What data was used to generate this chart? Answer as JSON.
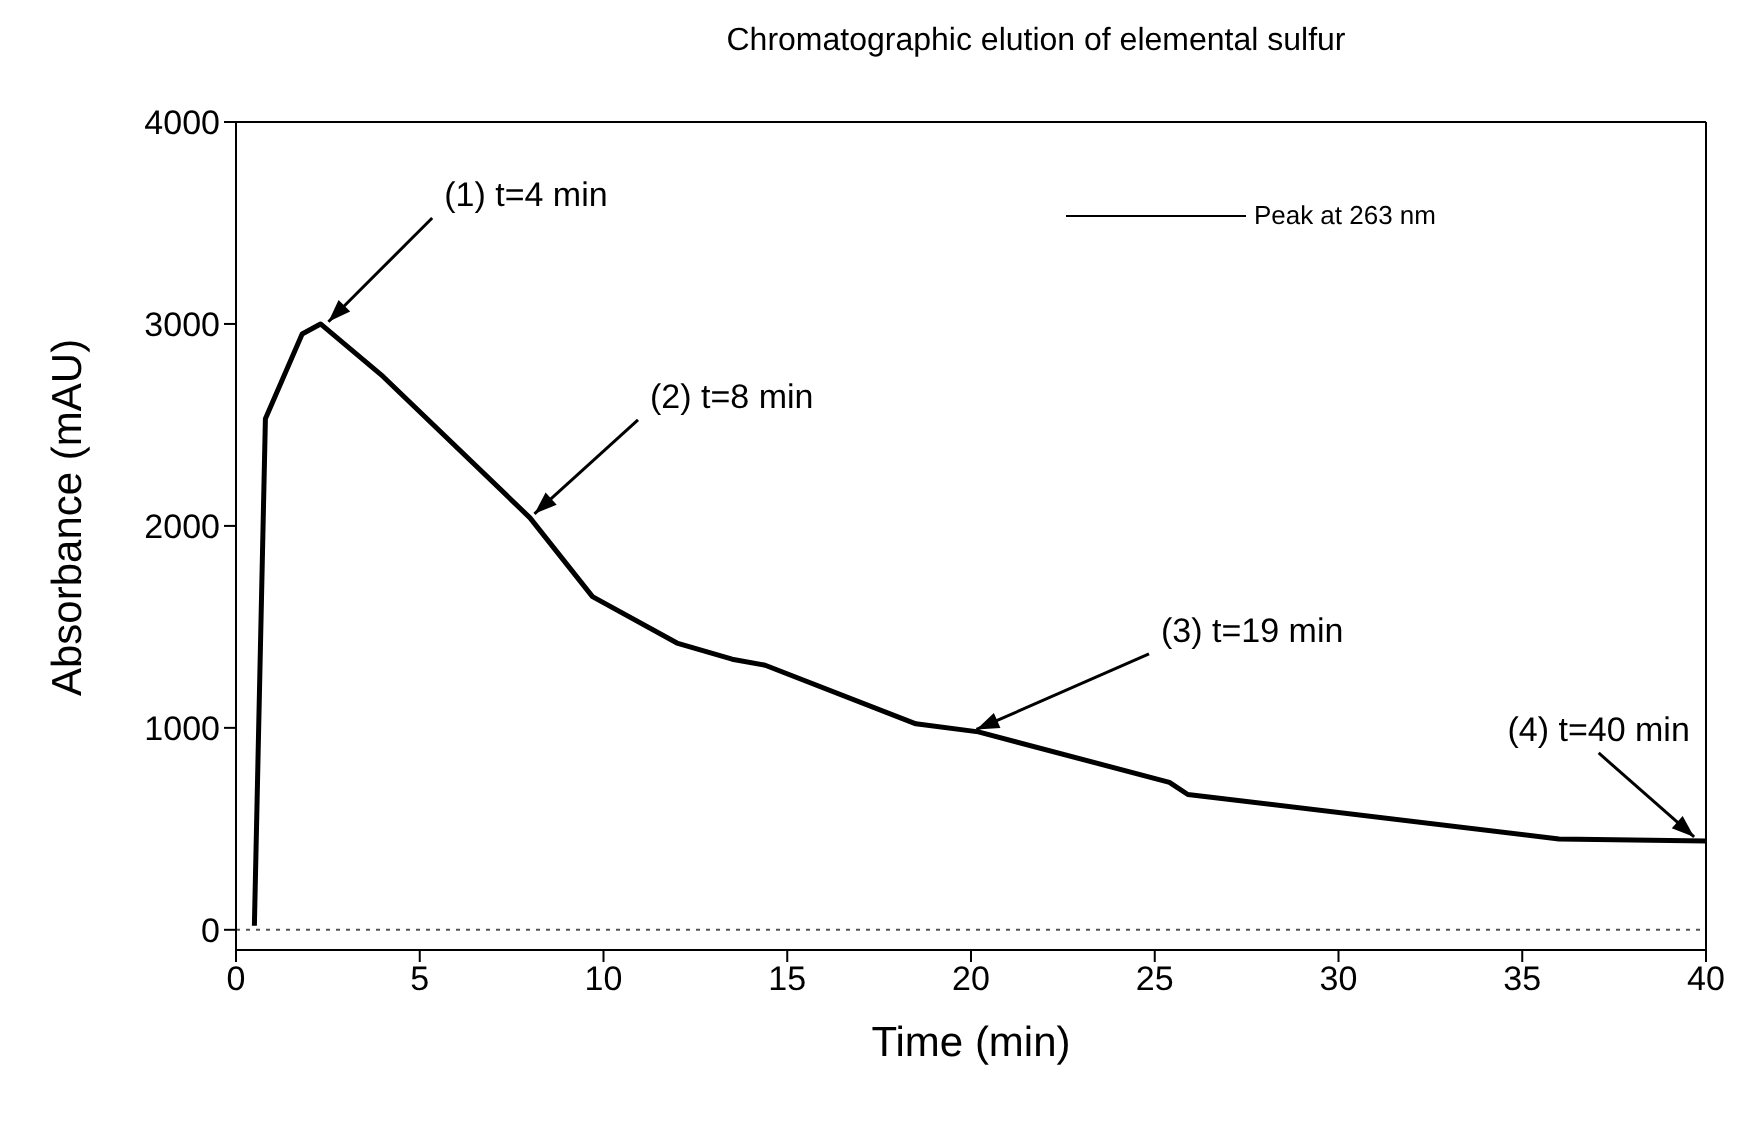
{
  "chart_data": {
    "type": "line",
    "title": "Chromatographic elution of elemental sulfur",
    "xlabel": "Time (min)",
    "ylabel": "Absorbance (mAU)",
    "series": [
      {
        "name": "Peak at 263 nm",
        "color": "#000000",
        "x": [
          0.5,
          0.8,
          1.8,
          2.3,
          4,
          8,
          9.7,
          12,
          13.5,
          14.4,
          18.5,
          20.2,
          25.4,
          25.9,
          36,
          40
        ],
        "values": [
          20,
          2530,
          2950,
          3000,
          2740,
          2040,
          1650,
          1420,
          1340,
          1310,
          1020,
          980,
          730,
          670,
          450,
          440
        ]
      }
    ],
    "xlim": [
      0,
      40
    ],
    "xticks": [
      0,
      5,
      10,
      15,
      20,
      25,
      30,
      35,
      40
    ],
    "ylim": [
      -100,
      4000
    ],
    "yticks": [
      0,
      1000,
      2000,
      3000,
      4000
    ],
    "legend": "top right",
    "marker": "none",
    "line_style": "solid",
    "ref_lines": [
      {
        "axis": "y",
        "value": 0,
        "line_style": "dotted",
        "color": "#555555"
      }
    ],
    "annotations": [
      {
        "text": "(1) t=4 min",
        "x": 2.4,
        "y": 2990
      },
      {
        "text": "(2) t=8 min",
        "x": 8,
        "y": 2040
      },
      {
        "text": "(3) t=19 min",
        "x": 20,
        "y": 980
      },
      {
        "text": "(4) t=40 min",
        "x": 39.8,
        "y": 440
      }
    ]
  }
}
